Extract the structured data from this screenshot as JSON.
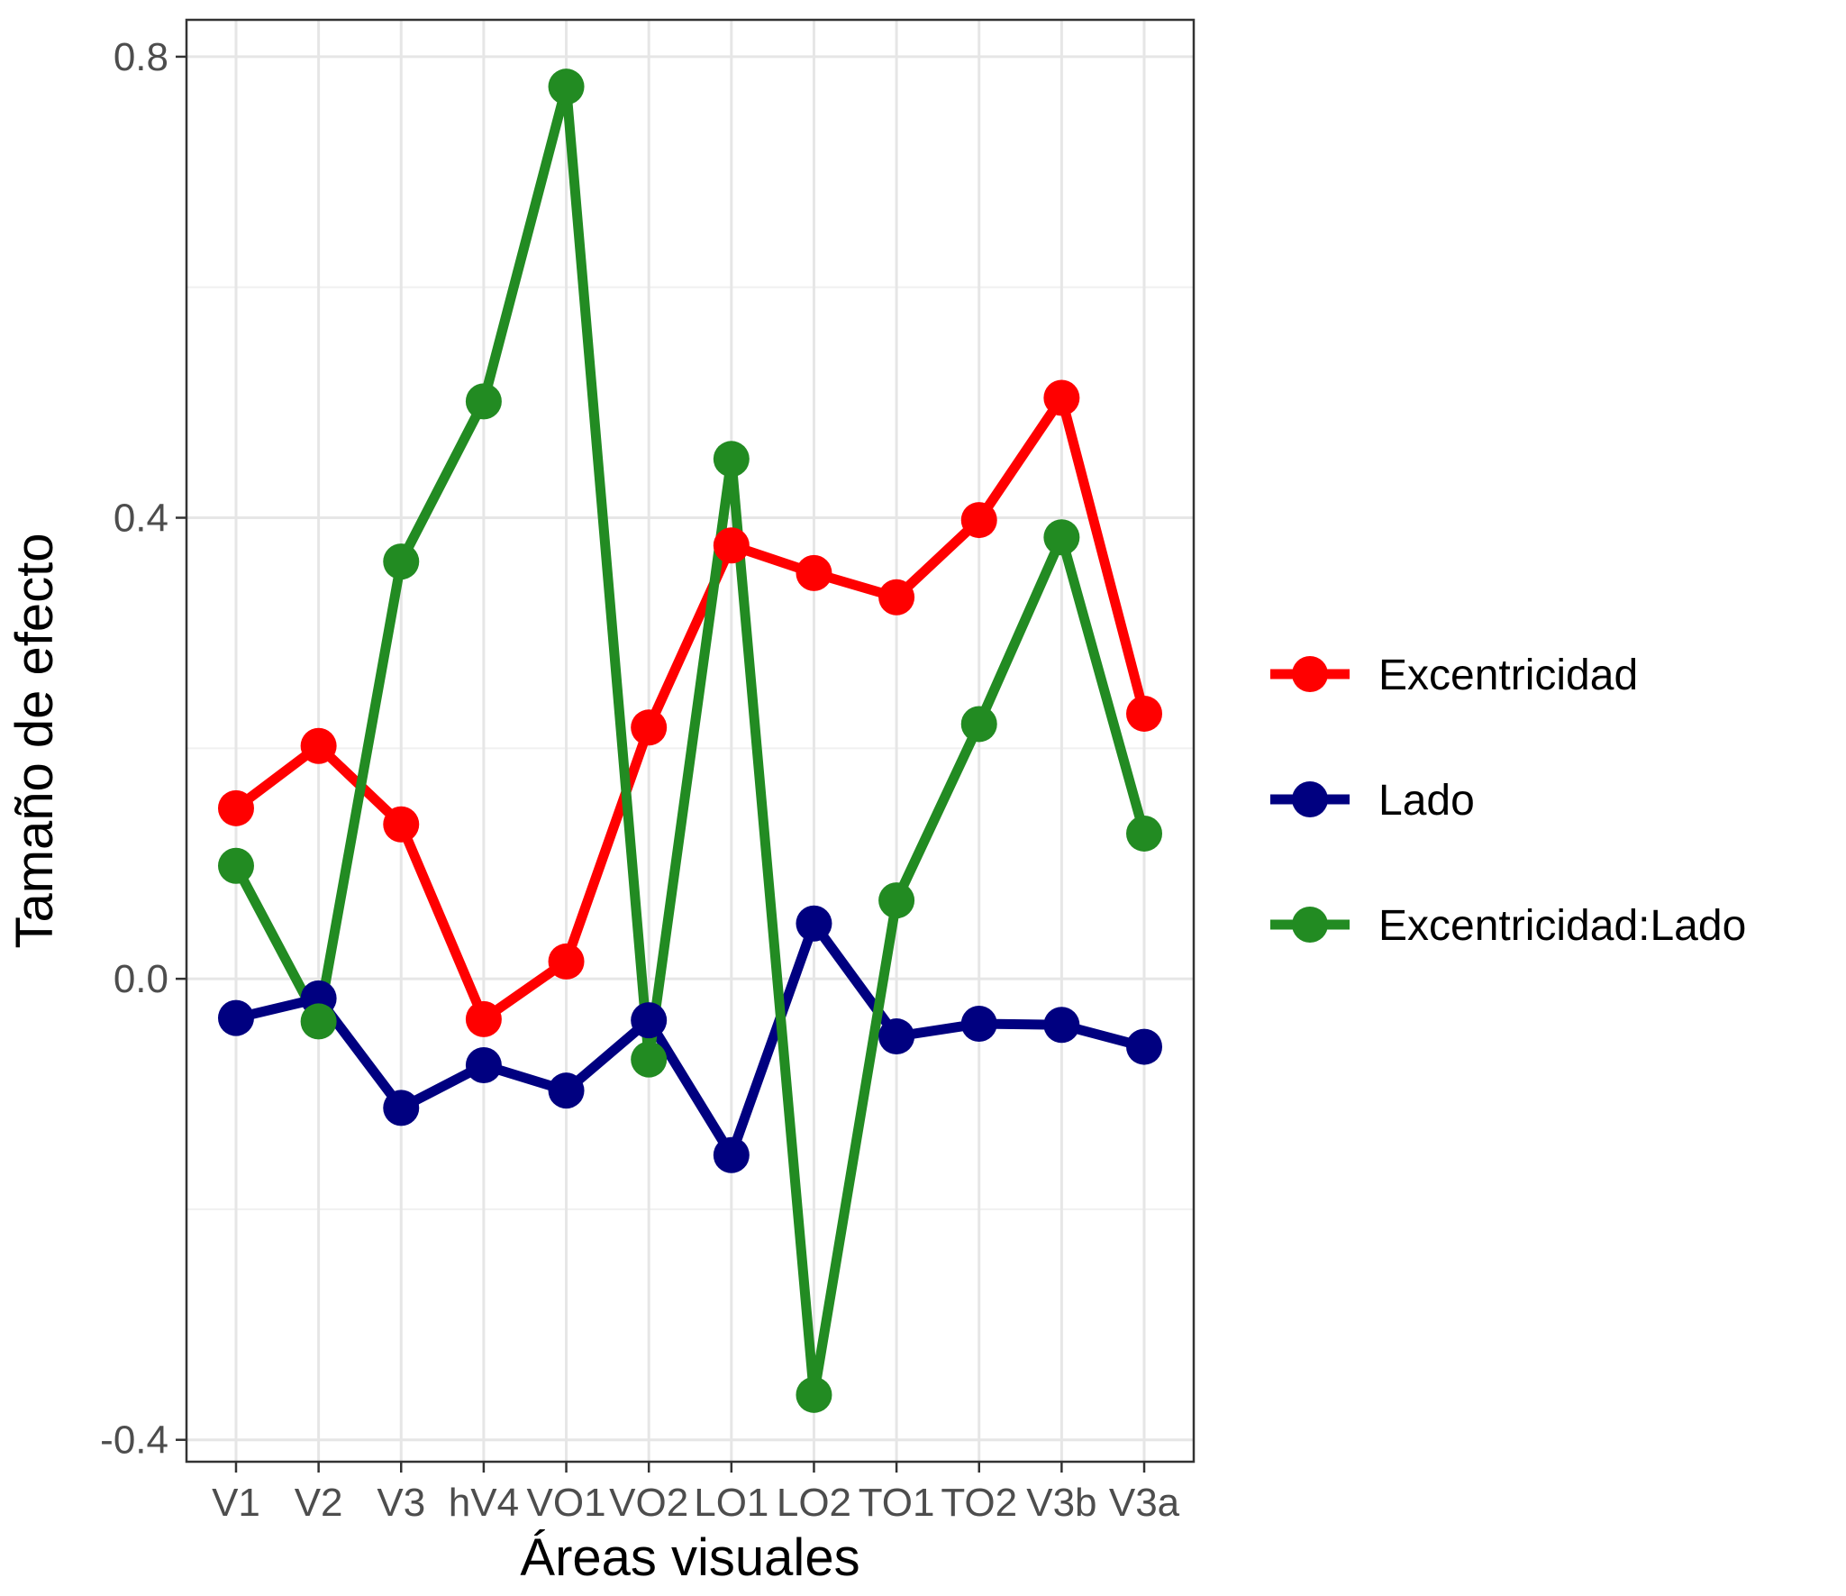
{
  "chart_data": {
    "type": "line",
    "xlabel": "Áreas visuales",
    "ylabel": "Tamaño de efecto",
    "categories": [
      "V1",
      "V2",
      "V3",
      "hV4",
      "VO1",
      "VO2",
      "LO1",
      "LO2",
      "TO1",
      "TO2",
      "V3b",
      "V3a"
    ],
    "y_ticks": [
      "0.8",
      "0.4",
      "0.0",
      "-0.4"
    ],
    "y_tick_values": [
      0.8,
      0.4,
      0.0,
      -0.4
    ],
    "ylim": [
      -0.419,
      0.832
    ],
    "grid": true,
    "legend_position": "right",
    "series": [
      {
        "name": "Excentricidad",
        "color": "#ff0000",
        "values": [
          0.148,
          0.202,
          0.134,
          -0.035,
          0.015,
          0.218,
          0.376,
          0.352,
          0.331,
          0.398,
          0.504,
          0.23
        ]
      },
      {
        "name": "Lado",
        "color": "#000080",
        "values": [
          -0.034,
          -0.017,
          -0.112,
          -0.075,
          -0.097,
          -0.036,
          -0.153,
          0.048,
          -0.05,
          -0.039,
          -0.04,
          -0.059
        ]
      },
      {
        "name": "Excentricidad:Lado",
        "color": "#228b22",
        "values": [
          0.098,
          -0.037,
          0.362,
          0.501,
          0.774,
          -0.07,
          0.451,
          -0.361,
          0.068,
          0.221,
          0.383,
          0.126
        ]
      }
    ]
  }
}
